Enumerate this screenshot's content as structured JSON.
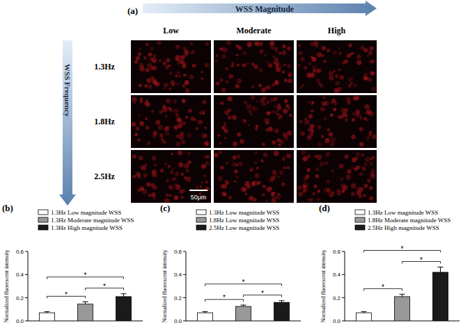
{
  "panel_a": {
    "label": "(a)",
    "x_arrow": "WSS Magnitude",
    "columns": [
      "Low",
      "Moderate",
      "High"
    ],
    "y_arrow": "WSS Frequency",
    "rows": [
      "1.3Hz",
      "1.8Hz",
      "2.5Hz"
    ],
    "scale_bar": "50μm"
  },
  "chart_data": [
    {
      "type": "bar",
      "title": "(b)",
      "y_label": "Normalized fluorescent intensity",
      "categories": [
        "1.3Hz Low magnitude WSS",
        "1.3Hz Moderate magnitude WSS",
        "1.3Hz High magnitude WSS"
      ],
      "values": [
        0.07,
        0.145,
        0.21
      ],
      "errors": [
        0.01,
        0.02,
        0.025
      ],
      "colors": [
        "#ffffff",
        "#999999",
        "#1a1a1a"
      ],
      "ylim": [
        0,
        0.6
      ],
      "yticks": [
        {
          "value": 0,
          "label": "0.0"
        },
        0.2,
        0.4,
        0.6
      ],
      "legend": "top-left",
      "tick_labels": "y",
      "annotations": [
        {
          "from": 0,
          "to": 1,
          "text": "*"
        },
        {
          "from": 1,
          "to": 2,
          "text": "*"
        },
        {
          "from": 0,
          "to": 2,
          "text": "*"
        }
      ]
    },
    {
      "type": "bar",
      "title": "(c)",
      "y_label": "Normalized fluorescent intensity",
      "categories": [
        "1.3Hz Low magnitude WSS",
        "1.8Hz Low magnitude WSS",
        "2.5Hz Low magnitude WSS"
      ],
      "values": [
        0.07,
        0.125,
        0.16
      ],
      "errors": [
        0.01,
        0.012,
        0.015
      ],
      "colors": [
        "#ffffff",
        "#999999",
        "#1a1a1a"
      ],
      "ylim": [
        0,
        0.6
      ],
      "yticks": [
        {
          "value": 0,
          "label": "0.0"
        },
        0.2,
        0.4,
        0.6
      ],
      "legend": "top-left",
      "tick_labels": "y",
      "annotations": [
        {
          "from": 0,
          "to": 1,
          "text": "*"
        },
        {
          "from": 1,
          "to": 2,
          "text": "*"
        },
        {
          "from": 0,
          "to": 2,
          "text": "*"
        }
      ]
    },
    {
      "type": "bar",
      "title": "(d)",
      "y_label": "Normalized fluorescent intensity",
      "categories": [
        "1.3Hz Low magnitude WSS",
        "1.8Hz Moderate magnitude WSS",
        "2.5Hz High magnitude WSS"
      ],
      "values": [
        0.07,
        0.21,
        0.42
      ],
      "errors": [
        0.01,
        0.02,
        0.045
      ],
      "colors": [
        "#ffffff",
        "#999999",
        "#1a1a1a"
      ],
      "ylim": [
        0,
        0.6
      ],
      "yticks": [
        {
          "value": 0,
          "label": "0.0"
        },
        0.2,
        0.4,
        0.6
      ],
      "legend": "top-left",
      "tick_labels": "y",
      "annotations": [
        {
          "from": 0,
          "to": 1,
          "text": "*"
        },
        {
          "from": 1,
          "to": 2,
          "text": "*"
        },
        {
          "from": 0,
          "to": 2,
          "text": "*"
        }
      ]
    }
  ]
}
